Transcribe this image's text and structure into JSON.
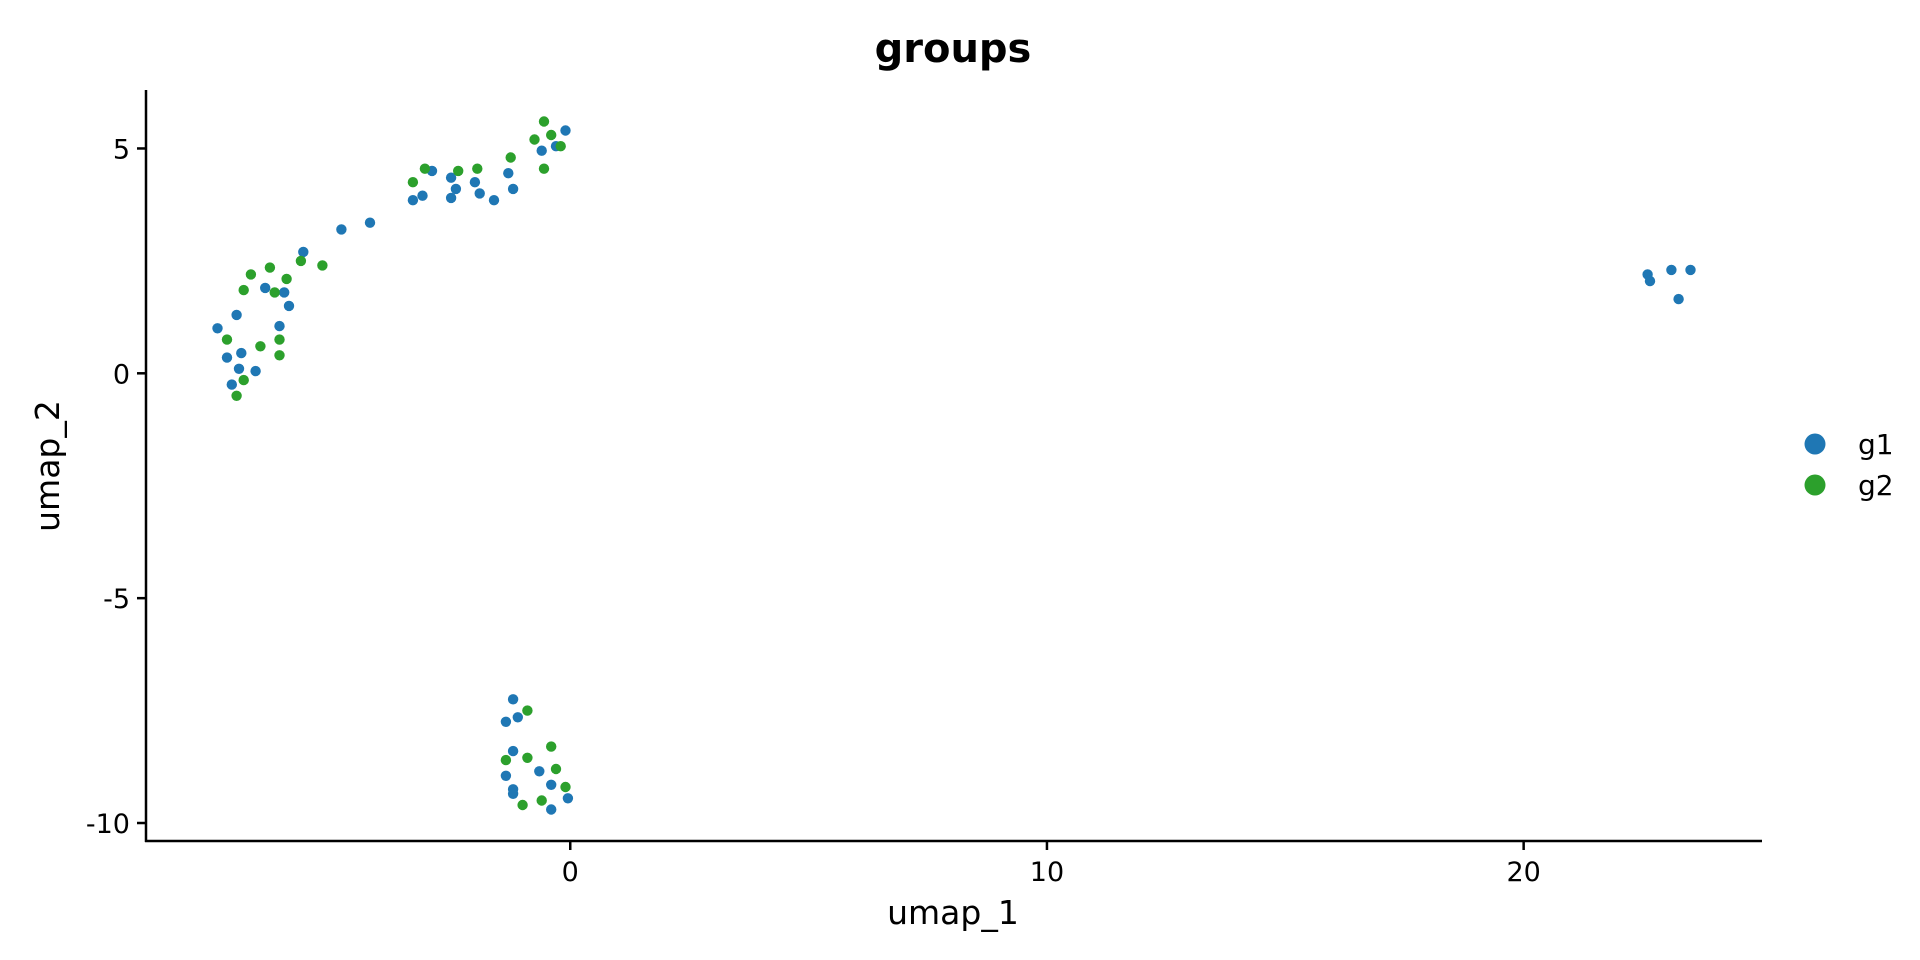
{
  "chart_data": {
    "type": "scatter",
    "title": "groups",
    "xlabel": "umap_1",
    "ylabel": "umap_2",
    "xlim": [
      -8.9,
      25.0
    ],
    "ylim": [
      -10.4,
      6.3
    ],
    "xticks": [
      0,
      10,
      20
    ],
    "xtick_labels": [
      "0",
      "10",
      "20"
    ],
    "yticks": [
      5,
      0,
      -5,
      -10
    ],
    "ytick_labels": [
      "5",
      "0",
      "-5",
      "-10"
    ],
    "grid": false,
    "legend_position": "right",
    "series": [
      {
        "name": "g1",
        "color": "#1f77b4",
        "points": [
          [
            -4.8,
            3.2
          ],
          [
            -4.2,
            3.35
          ],
          [
            -3.3,
            3.85
          ],
          [
            -3.1,
            3.95
          ],
          [
            -2.9,
            4.5
          ],
          [
            -2.5,
            4.35
          ],
          [
            -2.4,
            4.1
          ],
          [
            -2.5,
            3.9
          ],
          [
            -2.0,
            4.25
          ],
          [
            -1.9,
            4.0
          ],
          [
            -1.6,
            3.85
          ],
          [
            -1.3,
            4.45
          ],
          [
            -1.2,
            4.1
          ],
          [
            -0.6,
            4.95
          ],
          [
            -0.3,
            5.05
          ],
          [
            -0.1,
            5.4
          ],
          [
            -5.6,
            2.7
          ],
          [
            -6.4,
            1.9
          ],
          [
            -6.0,
            1.8
          ],
          [
            -5.9,
            1.5
          ],
          [
            -6.1,
            1.05
          ],
          [
            -7.4,
            1.0
          ],
          [
            -7.0,
            1.3
          ],
          [
            -7.2,
            0.35
          ],
          [
            -6.9,
            0.45
          ],
          [
            -6.95,
            0.1
          ],
          [
            -6.6,
            0.05
          ],
          [
            -7.1,
            -0.25
          ],
          [
            -1.2,
            -7.25
          ],
          [
            -1.1,
            -7.65
          ],
          [
            -1.35,
            -7.75
          ],
          [
            -1.2,
            -8.4
          ],
          [
            -0.65,
            -8.85
          ],
          [
            -1.35,
            -8.95
          ],
          [
            -1.2,
            -9.25
          ],
          [
            -1.2,
            -9.35
          ],
          [
            -0.4,
            -9.15
          ],
          [
            -0.05,
            -9.45
          ],
          [
            -0.4,
            -9.7
          ],
          [
            22.6,
            2.2
          ],
          [
            22.65,
            2.05
          ],
          [
            23.1,
            2.3
          ],
          [
            23.25,
            1.65
          ],
          [
            23.5,
            2.3
          ]
        ]
      },
      {
        "name": "g2",
        "color": "#2ca02c",
        "points": [
          [
            -3.3,
            4.25
          ],
          [
            -3.05,
            4.55
          ],
          [
            -2.35,
            4.5
          ],
          [
            -1.95,
            4.55
          ],
          [
            -1.25,
            4.8
          ],
          [
            -0.75,
            5.2
          ],
          [
            -0.55,
            5.6
          ],
          [
            -0.4,
            5.3
          ],
          [
            -0.55,
            4.55
          ],
          [
            -0.2,
            5.05
          ],
          [
            -5.2,
            2.4
          ],
          [
            -5.65,
            2.5
          ],
          [
            -5.95,
            2.1
          ],
          [
            -6.3,
            2.35
          ],
          [
            -6.7,
            2.2
          ],
          [
            -6.85,
            1.85
          ],
          [
            -6.2,
            1.8
          ],
          [
            -7.2,
            0.75
          ],
          [
            -6.5,
            0.6
          ],
          [
            -6.1,
            0.75
          ],
          [
            -6.1,
            0.4
          ],
          [
            -6.85,
            -0.15
          ],
          [
            -7.0,
            -0.5
          ],
          [
            -0.9,
            -7.5
          ],
          [
            -1.35,
            -8.6
          ],
          [
            -0.9,
            -8.55
          ],
          [
            -0.4,
            -8.3
          ],
          [
            -0.3,
            -8.8
          ],
          [
            -0.1,
            -9.2
          ],
          [
            -1.0,
            -9.6
          ],
          [
            -0.6,
            -9.5
          ]
        ]
      }
    ]
  }
}
